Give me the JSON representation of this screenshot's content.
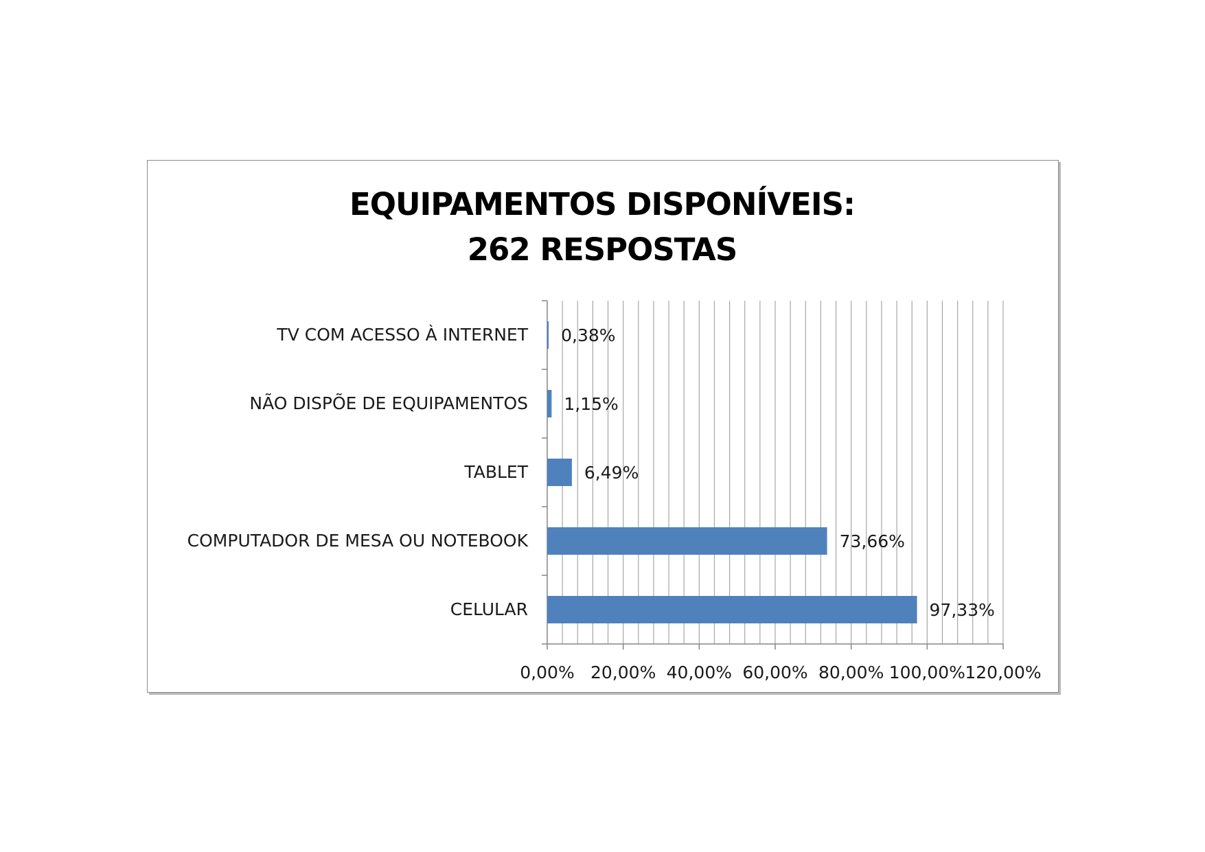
{
  "chart_data": {
    "type": "bar",
    "orientation": "horizontal",
    "title_lines": [
      "EQUIPAMENTOS DISPONÍVEIS:",
      "262 RESPOSTAS"
    ],
    "categories": [
      "TV COM ACESSO À INTERNET",
      "NÃO DISPÕE DE EQUIPAMENTOS",
      "TABLET",
      "COMPUTADOR DE MESA OU NOTEBOOK",
      "CELULAR"
    ],
    "values": [
      0.38,
      1.15,
      6.49,
      73.66,
      97.33
    ],
    "value_labels": [
      "0,38%",
      "1,15%",
      "6,49%",
      "73,66%",
      "97,33%"
    ],
    "xlim": [
      0,
      120
    ],
    "x_ticks": [
      0,
      20,
      40,
      60,
      80,
      100,
      120
    ],
    "x_tick_labels": [
      "0,00%",
      "20,00%",
      "40,00%",
      "60,00%",
      "80,00%",
      "100,00%",
      "120,00%"
    ],
    "minor_grid_step": 4,
    "grid": true,
    "legend": "none",
    "bar_color": "#4f81bd",
    "grid_color": "#a6a6a6"
  }
}
